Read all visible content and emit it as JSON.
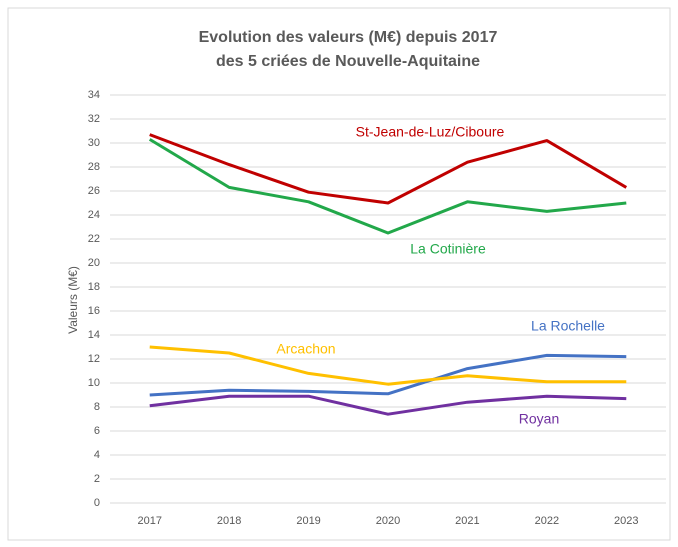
{
  "chart_data": {
    "type": "line",
    "title_lines": [
      "Evolution des valeurs (M€) depuis 2017",
      "des 5 criées de Nouvelle-Aquitaine"
    ],
    "y_label": "Valeurs (M€)",
    "categories": [
      "2017",
      "2018",
      "2019",
      "2020",
      "2021",
      "2022",
      "2023"
    ],
    "series": [
      {
        "name": "St-Jean-de-Luz/Ciboure",
        "color": "#c00000",
        "values": [
          30.7,
          28.2,
          25.9,
          25.0,
          28.4,
          30.2,
          26.3
        ]
      },
      {
        "name": "La Cotinière",
        "color": "#22a84a",
        "values": [
          30.3,
          26.3,
          25.1,
          22.5,
          25.1,
          24.3,
          25.0
        ]
      },
      {
        "name": "La Rochelle",
        "color": "#4472c4",
        "values": [
          9.0,
          9.4,
          9.3,
          9.1,
          11.2,
          12.3,
          12.2
        ]
      },
      {
        "name": "Arcachon",
        "color": "#ffc000",
        "values": [
          13.0,
          12.5,
          10.8,
          9.9,
          10.6,
          10.1,
          10.1
        ]
      },
      {
        "name": "Royan",
        "color": "#7030a0",
        "values": [
          8.1,
          8.9,
          8.9,
          7.4,
          8.4,
          8.9,
          8.7
        ]
      }
    ],
    "ylim": [
      0,
      34
    ],
    "yticks": [
      0,
      2,
      4,
      6,
      8,
      10,
      12,
      14,
      16,
      18,
      20,
      22,
      24,
      26,
      28,
      30,
      32,
      34
    ],
    "grid": true
  }
}
